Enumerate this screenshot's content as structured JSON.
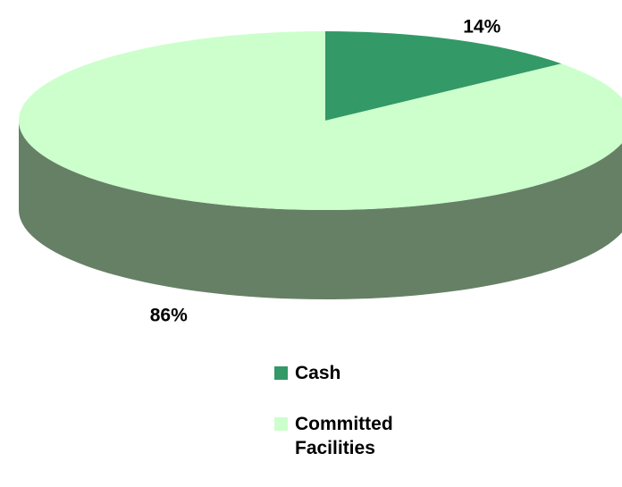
{
  "chart_data": {
    "type": "pie",
    "categories": [
      "Cash",
      "Committed Facilities"
    ],
    "values": [
      14,
      86
    ],
    "value_labels": [
      "14%",
      "86%"
    ],
    "colors": [
      "#339966",
      "#ccffcc"
    ],
    "side_color": "#668066",
    "legend": "bottom-right"
  }
}
